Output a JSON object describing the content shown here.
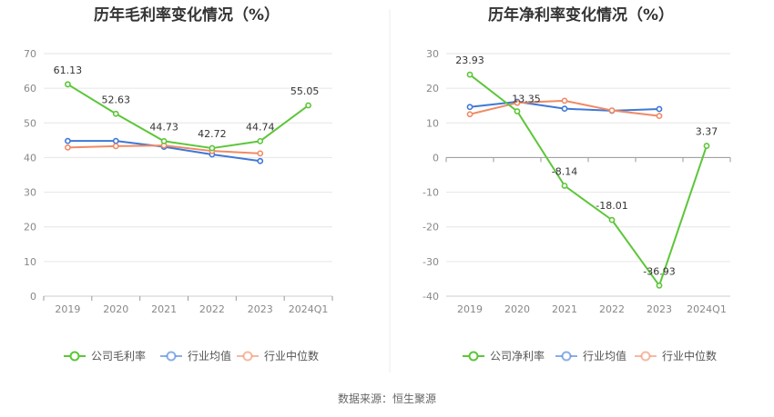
{
  "source_text": "数据来源：恒生聚源",
  "chart_data": [
    {
      "type": "line",
      "title": "历年毛利率变化情况（%）",
      "categories": [
        "2019",
        "2020",
        "2021",
        "2022",
        "2023",
        "2024Q1"
      ],
      "ylim": [
        0,
        70
      ],
      "yticks": [
        0,
        10,
        20,
        30,
        40,
        50,
        60,
        70
      ],
      "grid": true,
      "legend_position": "bottom",
      "series": [
        {
          "name": "公司毛利率",
          "color": "#5cc639",
          "values": [
            61.13,
            52.63,
            44.73,
            42.72,
            44.74,
            55.05
          ],
          "labels": [
            "61.13",
            "52.63",
            "44.73",
            "42.72",
            "44.74",
            "55.05"
          ]
        },
        {
          "name": "行业均值",
          "color": "#3f78d6",
          "values": [
            44.8,
            44.8,
            43.1,
            40.9,
            39.0,
            null
          ]
        },
        {
          "name": "行业中位数",
          "color": "#f08a65",
          "values": [
            42.9,
            43.3,
            43.5,
            41.9,
            41.2,
            null
          ]
        }
      ]
    },
    {
      "type": "line",
      "title": "历年净利率变化情况（%）",
      "categories": [
        "2019",
        "2020",
        "2021",
        "2022",
        "2023",
        "2024Q1"
      ],
      "ylim": [
        -40,
        30
      ],
      "yticks": [
        -40,
        -30,
        -20,
        -10,
        0,
        10,
        20,
        30
      ],
      "grid": true,
      "legend_position": "bottom",
      "series": [
        {
          "name": "公司净利率",
          "color": "#5cc639",
          "values": [
            23.93,
            13.35,
            -8.14,
            -18.01,
            -36.93,
            3.37
          ],
          "labels": [
            "23.93",
            "13.35",
            "-8.14",
            "-18.01",
            "-36.93",
            "3.37"
          ]
        },
        {
          "name": "行业均值",
          "color": "#3f78d6",
          "values": [
            14.6,
            16.1,
            14.1,
            13.5,
            14.0,
            null
          ]
        },
        {
          "name": "行业中位数",
          "color": "#f08a65",
          "values": [
            12.5,
            15.8,
            16.4,
            13.6,
            12.0,
            null
          ]
        }
      ]
    }
  ]
}
